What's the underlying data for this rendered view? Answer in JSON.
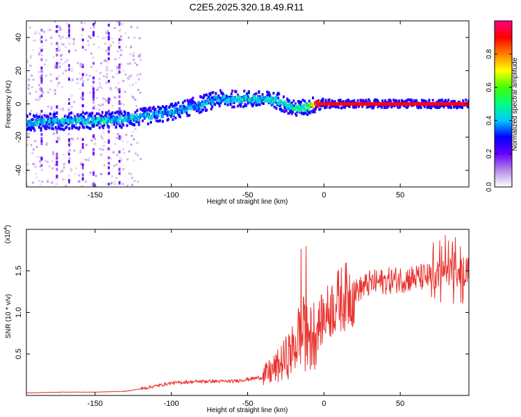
{
  "title": "C2E5.2025.320.18.49.R11",
  "chart_data": [
    {
      "type": "heatmap",
      "name": "spectrogram",
      "xlabel": "Height of straight line (km)",
      "ylabel": "Frequency (Hz)",
      "xlim": [
        -195,
        95
      ],
      "ylim": [
        -50,
        50
      ],
      "xticks": [
        -150,
        -100,
        -50,
        0,
        50
      ],
      "yticks": [
        -40,
        -20,
        0,
        20,
        40
      ],
      "colorbar": {
        "label": "Normalized spectral amplitude",
        "range": [
          0.0,
          1.0
        ],
        "ticks": [
          0.0,
          0.2,
          0.4,
          0.6,
          0.8
        ],
        "tick_labels": [
          "0.0",
          "0.2",
          "0.4",
          "0.6",
          "0.8"
        ],
        "colormap": [
          "#ffffff",
          "#b38be6",
          "#6a00ff",
          "#0000ff",
          "#00c8ff",
          "#00ff80",
          "#40ff00",
          "#ffff00",
          "#ff8000",
          "#ff0000",
          "#ff0080"
        ]
      },
      "ridge": [
        {
          "x": -195,
          "freq": -11,
          "amp": 0.4
        },
        {
          "x": -180,
          "freq": -11,
          "amp": 0.4
        },
        {
          "x": -160,
          "freq": -10,
          "amp": 0.42
        },
        {
          "x": -140,
          "freq": -10,
          "amp": 0.42
        },
        {
          "x": -120,
          "freq": -8,
          "amp": 0.4
        },
        {
          "x": -100,
          "freq": -5,
          "amp": 0.38
        },
        {
          "x": -80,
          "freq": 0,
          "amp": 0.38
        },
        {
          "x": -70,
          "freq": 3,
          "amp": 0.4
        },
        {
          "x": -50,
          "freq": 3,
          "amp": 0.42
        },
        {
          "x": -30,
          "freq": 2,
          "amp": 0.42
        },
        {
          "x": -20,
          "freq": -3,
          "amp": 0.45
        },
        {
          "x": -10,
          "freq": -2,
          "amp": 0.5
        },
        {
          "x": -5,
          "freq": 0,
          "amp": 0.9
        },
        {
          "x": 10,
          "freq": 0,
          "amp": 0.9
        },
        {
          "x": 50,
          "freq": 0,
          "amp": 0.92
        },
        {
          "x": 95,
          "freq": 0,
          "amp": 0.92
        }
      ]
    },
    {
      "type": "line",
      "name": "snr",
      "xlabel": "Height of straight line (km)",
      "ylabel": "SNR (10 * v/v)",
      "scale_label": "(x10",
      "scale_exp": "4",
      "scale_close": ")",
      "color": "#e8332f",
      "xlim": [
        -195,
        95
      ],
      "ylim": [
        0,
        2.0
      ],
      "xticks": [
        -150,
        -100,
        -50,
        0,
        50
      ],
      "yticks": [
        0.5,
        1.0,
        1.5
      ],
      "ytick_labels": [
        "0.5",
        "1.0",
        "1.5"
      ],
      "series": [
        {
          "name": "SNR",
          "x": [
            -195,
            -170,
            -150,
            -130,
            -120,
            -100,
            -80,
            -60,
            -40,
            -30,
            -20,
            -15,
            -10,
            -5,
            0,
            5,
            10,
            20,
            30,
            50,
            70,
            80,
            95
          ],
          "y": [
            0.03,
            0.04,
            0.04,
            0.05,
            0.08,
            0.15,
            0.17,
            0.17,
            0.22,
            0.35,
            0.55,
            0.8,
            0.65,
            0.8,
            0.95,
            1.05,
            1.15,
            1.25,
            1.35,
            1.4,
            1.43,
            1.47,
            1.5
          ]
        }
      ]
    }
  ]
}
